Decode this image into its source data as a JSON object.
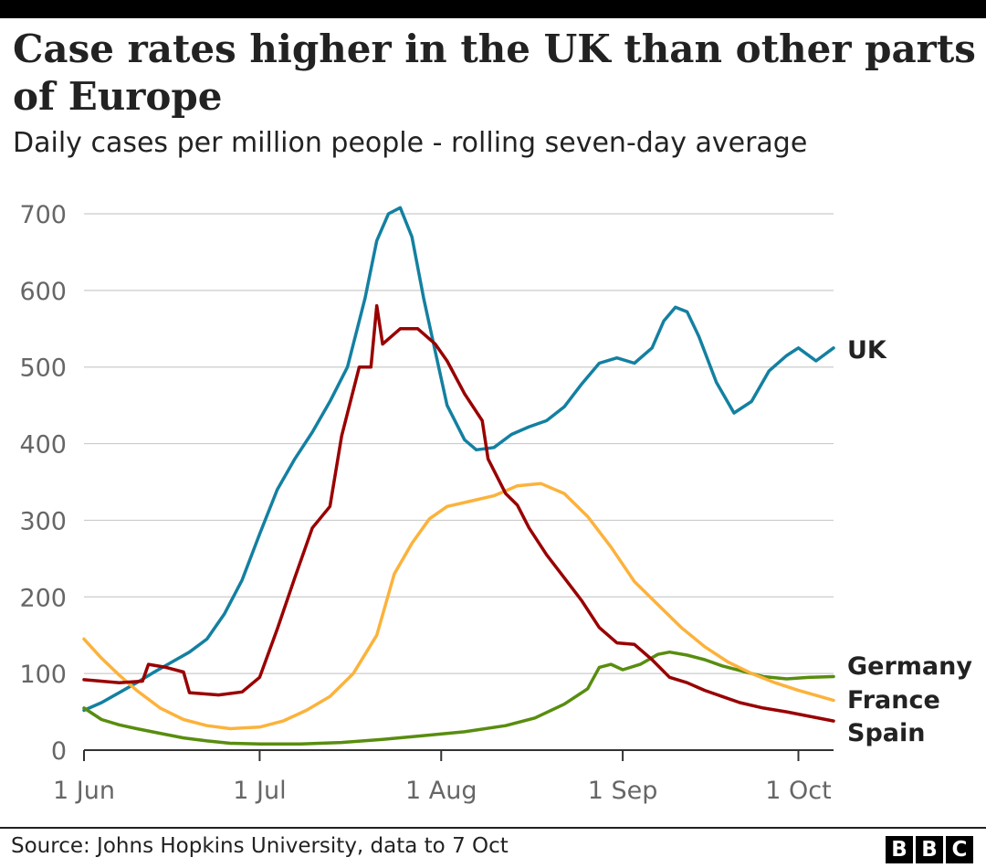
{
  "header": {
    "title": "Case rates higher in the UK than other parts of Europe",
    "subtitle": "Daily cases per million people - rolling seven-day average"
  },
  "footer": {
    "source": "Source: Johns Hopkins University, data to 7 Oct",
    "logo_letters": [
      "B",
      "B",
      "C"
    ]
  },
  "chart_data": {
    "type": "line",
    "title": "Case rates higher in the UK than other parts of Europe",
    "subtitle": "Daily cases per million people - rolling seven-day average",
    "xlabel": "",
    "ylabel": "",
    "x_range": [
      "2021-06-01",
      "2021-10-07"
    ],
    "ylim": [
      0,
      700
    ],
    "y_ticks": [
      0,
      100,
      200,
      300,
      400,
      500,
      600,
      700
    ],
    "x_ticks": [
      {
        "date": "2021-06-01",
        "label": "1 Jun"
      },
      {
        "date": "2021-07-01",
        "label": "1 Jul"
      },
      {
        "date": "2021-08-01",
        "label": "1 Aug"
      },
      {
        "date": "2021-09-01",
        "label": "1 Sep"
      },
      {
        "date": "2021-10-01",
        "label": "1 Oct"
      }
    ],
    "grid": true,
    "legend": "direct labels at right end of lines",
    "series": [
      {
        "name": "UK",
        "color": "#1380a1",
        "points": [
          [
            "2021-06-01",
            52
          ],
          [
            "2021-06-04",
            62
          ],
          [
            "2021-06-07",
            75
          ],
          [
            "2021-06-10",
            88
          ],
          [
            "2021-06-13",
            102
          ],
          [
            "2021-06-16",
            115
          ],
          [
            "2021-06-19",
            128
          ],
          [
            "2021-06-22",
            145
          ],
          [
            "2021-06-25",
            178
          ],
          [
            "2021-06-28",
            222
          ],
          [
            "2021-07-01",
            282
          ],
          [
            "2021-07-04",
            340
          ],
          [
            "2021-07-07",
            380
          ],
          [
            "2021-07-10",
            415
          ],
          [
            "2021-07-13",
            455
          ],
          [
            "2021-07-16",
            500
          ],
          [
            "2021-07-19",
            590
          ],
          [
            "2021-07-21",
            665
          ],
          [
            "2021-07-23",
            700
          ],
          [
            "2021-07-25",
            708
          ],
          [
            "2021-07-27",
            670
          ],
          [
            "2021-07-29",
            590
          ],
          [
            "2021-07-31",
            520
          ],
          [
            "2021-08-02",
            450
          ],
          [
            "2021-08-05",
            405
          ],
          [
            "2021-08-07",
            392
          ],
          [
            "2021-08-10",
            395
          ],
          [
            "2021-08-13",
            412
          ],
          [
            "2021-08-16",
            422
          ],
          [
            "2021-08-19",
            430
          ],
          [
            "2021-08-22",
            448
          ],
          [
            "2021-08-25",
            478
          ],
          [
            "2021-08-28",
            505
          ],
          [
            "2021-08-31",
            512
          ],
          [
            "2021-09-03",
            505
          ],
          [
            "2021-09-06",
            525
          ],
          [
            "2021-09-08",
            560
          ],
          [
            "2021-09-10",
            578
          ],
          [
            "2021-09-12",
            572
          ],
          [
            "2021-09-14",
            540
          ],
          [
            "2021-09-17",
            480
          ],
          [
            "2021-09-20",
            440
          ],
          [
            "2021-09-23",
            455
          ],
          [
            "2021-09-26",
            495
          ],
          [
            "2021-09-29",
            515
          ],
          [
            "2021-10-01",
            525
          ],
          [
            "2021-10-04",
            508
          ],
          [
            "2021-10-07",
            525
          ]
        ]
      },
      {
        "name": "Germany",
        "color": "#588d0e",
        "points": [
          [
            "2021-06-01",
            55
          ],
          [
            "2021-06-04",
            40
          ],
          [
            "2021-06-07",
            33
          ],
          [
            "2021-06-10",
            28
          ],
          [
            "2021-06-14",
            22
          ],
          [
            "2021-06-18",
            16
          ],
          [
            "2021-06-22",
            12
          ],
          [
            "2021-06-26",
            9
          ],
          [
            "2021-07-01",
            8
          ],
          [
            "2021-07-08",
            8
          ],
          [
            "2021-07-15",
            10
          ],
          [
            "2021-07-22",
            14
          ],
          [
            "2021-07-29",
            19
          ],
          [
            "2021-08-05",
            24
          ],
          [
            "2021-08-12",
            32
          ],
          [
            "2021-08-17",
            42
          ],
          [
            "2021-08-22",
            60
          ],
          [
            "2021-08-26",
            80
          ],
          [
            "2021-08-28",
            108
          ],
          [
            "2021-08-30",
            112
          ],
          [
            "2021-09-01",
            105
          ],
          [
            "2021-09-04",
            112
          ],
          [
            "2021-09-07",
            125
          ],
          [
            "2021-09-09",
            128
          ],
          [
            "2021-09-12",
            124
          ],
          [
            "2021-09-15",
            118
          ],
          [
            "2021-09-18",
            110
          ],
          [
            "2021-09-21",
            104
          ],
          [
            "2021-09-25",
            96
          ],
          [
            "2021-09-29",
            93
          ],
          [
            "2021-10-03",
            95
          ],
          [
            "2021-10-07",
            96
          ]
        ]
      },
      {
        "name": "France",
        "color": "#fcb23b",
        "points": [
          [
            "2021-06-01",
            145
          ],
          [
            "2021-06-04",
            120
          ],
          [
            "2021-06-07",
            98
          ],
          [
            "2021-06-10",
            78
          ],
          [
            "2021-06-14",
            55
          ],
          [
            "2021-06-18",
            40
          ],
          [
            "2021-06-22",
            32
          ],
          [
            "2021-06-26",
            28
          ],
          [
            "2021-07-01",
            30
          ],
          [
            "2021-07-05",
            38
          ],
          [
            "2021-07-09",
            52
          ],
          [
            "2021-07-13",
            70
          ],
          [
            "2021-07-17",
            100
          ],
          [
            "2021-07-21",
            150
          ],
          [
            "2021-07-24",
            230
          ],
          [
            "2021-07-27",
            270
          ],
          [
            "2021-07-30",
            302
          ],
          [
            "2021-08-02",
            318
          ],
          [
            "2021-08-06",
            325
          ],
          [
            "2021-08-10",
            332
          ],
          [
            "2021-08-14",
            345
          ],
          [
            "2021-08-18",
            348
          ],
          [
            "2021-08-22",
            335
          ],
          [
            "2021-08-26",
            305
          ],
          [
            "2021-08-30",
            265
          ],
          [
            "2021-09-03",
            220
          ],
          [
            "2021-09-07",
            190
          ],
          [
            "2021-09-11",
            160
          ],
          [
            "2021-09-15",
            135
          ],
          [
            "2021-09-19",
            115
          ],
          [
            "2021-09-23",
            100
          ],
          [
            "2021-09-27",
            88
          ],
          [
            "2021-10-01",
            78
          ],
          [
            "2021-10-07",
            65
          ]
        ]
      },
      {
        "name": "Spain",
        "color": "#990000",
        "points": [
          [
            "2021-06-01",
            92
          ],
          [
            "2021-06-07",
            88
          ],
          [
            "2021-06-11",
            90
          ],
          [
            "2021-06-12",
            112
          ],
          [
            "2021-06-15",
            108
          ],
          [
            "2021-06-18",
            102
          ],
          [
            "2021-06-19",
            75
          ],
          [
            "2021-06-24",
            72
          ],
          [
            "2021-06-28",
            76
          ],
          [
            "2021-07-01",
            95
          ],
          [
            "2021-07-04",
            158
          ],
          [
            "2021-07-07",
            225
          ],
          [
            "2021-07-10",
            290
          ],
          [
            "2021-07-13",
            318
          ],
          [
            "2021-07-15",
            410
          ],
          [
            "2021-07-18",
            500
          ],
          [
            "2021-07-20",
            500
          ],
          [
            "2021-07-21",
            580
          ],
          [
            "2021-07-22",
            530
          ],
          [
            "2021-07-25",
            550
          ],
          [
            "2021-07-28",
            550
          ],
          [
            "2021-07-31",
            530
          ],
          [
            "2021-08-02",
            508
          ],
          [
            "2021-08-05",
            465
          ],
          [
            "2021-08-08",
            430
          ],
          [
            "2021-08-09",
            380
          ],
          [
            "2021-08-12",
            335
          ],
          [
            "2021-08-14",
            320
          ],
          [
            "2021-08-16",
            290
          ],
          [
            "2021-08-19",
            255
          ],
          [
            "2021-08-22",
            225
          ],
          [
            "2021-08-25",
            195
          ],
          [
            "2021-08-28",
            160
          ],
          [
            "2021-08-31",
            140
          ],
          [
            "2021-09-03",
            138
          ],
          [
            "2021-09-06",
            118
          ],
          [
            "2021-09-09",
            95
          ],
          [
            "2021-09-12",
            88
          ],
          [
            "2021-09-15",
            78
          ],
          [
            "2021-09-18",
            70
          ],
          [
            "2021-09-21",
            62
          ],
          [
            "2021-09-25",
            55
          ],
          [
            "2021-09-29",
            50
          ],
          [
            "2021-10-03",
            44
          ],
          [
            "2021-10-07",
            38
          ]
        ]
      }
    ]
  }
}
